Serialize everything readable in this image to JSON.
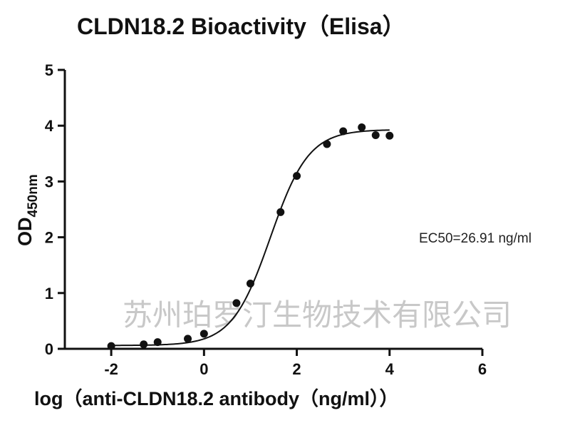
{
  "chart_data": {
    "type": "scatter",
    "title": "CLDN18.2 Bioactivity（Elisa）",
    "xlabel": "log（anti-CLDN18.2 antibody（ng/ml））",
    "ylabel_main": "OD",
    "ylabel_sub": "450nm",
    "xlim": [
      -3,
      6
    ],
    "ylim": [
      0,
      5
    ],
    "x_ticks": [
      -2,
      0,
      2,
      4,
      6
    ],
    "y_ticks": [
      0,
      1,
      2,
      3,
      4,
      5
    ],
    "grid": false,
    "annotation": "EC50=26.91 ng/ml",
    "watermark": "苏州珀罗汀生物技术有限公司",
    "points": {
      "x": [
        -2.0,
        -1.3,
        -1.0,
        -0.35,
        0.0,
        0.7,
        1.0,
        1.65,
        2.0,
        2.65,
        3.0,
        3.4,
        3.7,
        4.0
      ],
      "y": [
        0.05,
        0.08,
        0.12,
        0.18,
        0.27,
        0.82,
        1.17,
        2.45,
        3.1,
        3.67,
        3.9,
        3.97,
        3.83,
        3.82
      ]
    },
    "fit_curve": {
      "model": "4PL",
      "bottom": 0.06,
      "top": 3.93,
      "log_ec50": 1.43,
      "hill_slope": 1.05,
      "x_range": [
        -2.0,
        4.0
      ]
    },
    "colors": {
      "points": "#111111",
      "curve": "#111111",
      "axes": "#111111",
      "watermark": "#c8c8c8"
    }
  }
}
